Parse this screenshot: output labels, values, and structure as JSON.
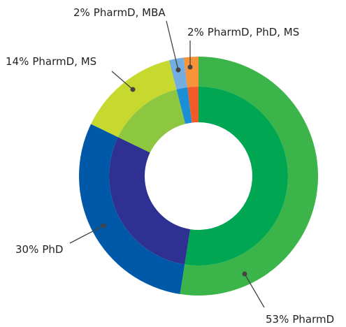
{
  "chart_data": {
    "type": "donut",
    "categories": [
      "PharmD",
      "PhD",
      "PharmD, MS",
      "PharmD, MBA",
      "PharmD, PhD, MS"
    ],
    "values": [
      53,
      30,
      14,
      2,
      2
    ],
    "value_labels": [
      "53%",
      "30%",
      "14%",
      "2%",
      "2%"
    ],
    "colors": [
      "#3bb54a",
      "#0059a8",
      "#c7d92f",
      "#74aee0",
      "#f7943a"
    ],
    "inner_colors": [
      "#00a651",
      "#2e3192",
      "#8dc63f",
      "#1b8fd6",
      "#f15a29"
    ]
  }
}
